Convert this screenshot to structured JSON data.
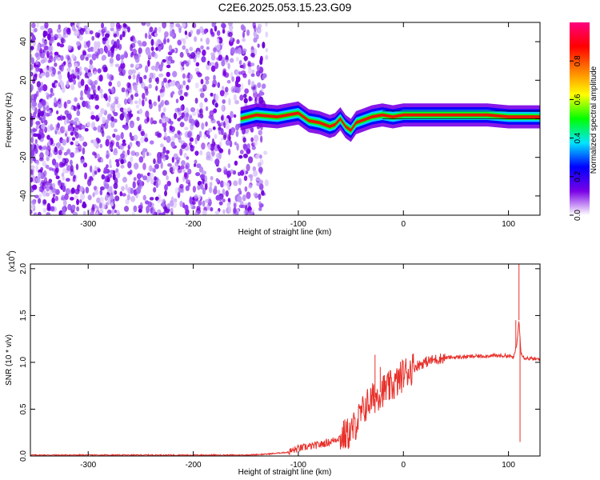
{
  "title": "C2E6.2025.053.15.23.G09",
  "chart_data": [
    {
      "type": "heatmap",
      "xlabel": "Height of straight line (km)",
      "ylabel": "Frequency (Hz)",
      "xlim": [
        -355,
        130
      ],
      "ylim": [
        -50,
        50
      ],
      "xticks": [
        -300,
        -200,
        -100,
        0,
        100
      ],
      "yticks": [
        -40,
        -20,
        0,
        20,
        40
      ],
      "ridge_x": [
        -155,
        -140,
        -120,
        -100,
        -90,
        -80,
        -70,
        -65,
        -60,
        -55,
        -50,
        -45,
        -40,
        -30,
        -20,
        -10,
        0,
        20,
        40,
        60,
        80,
        100,
        110,
        130
      ],
      "ridge_y": [
        0,
        2,
        1,
        3,
        -1,
        -2,
        -4,
        -3,
        0,
        -4,
        -6,
        -2,
        -1,
        1,
        2,
        1,
        2,
        2,
        2,
        2,
        2,
        1,
        1,
        1
      ],
      "colorbar": {
        "label": "Normalized spectral amplitude",
        "range": [
          0,
          1
        ],
        "ticks": [
          "0.0",
          "0.2",
          "0.4",
          "0.6",
          "0.8"
        ],
        "colors": [
          "#ffffff",
          "#7a00e6",
          "#0000ff",
          "#00e5ff",
          "#00ff00",
          "#ffff00",
          "#ff8000",
          "#ff0000",
          "#ff0080"
        ]
      }
    },
    {
      "type": "line",
      "xlabel": "Height of straight line (km)",
      "ylabel": "SNR (10 * v/v)",
      "y_multiplier": "(x10",
      "y_multiplier_exp": "4",
      "y_multiplier_close": ")",
      "xlim": [
        -355,
        130
      ],
      "ylim": [
        0,
        2.05
      ],
      "xticks": [
        -300,
        -200,
        -100,
        0,
        100
      ],
      "yticks": [
        "0.0",
        "0.5",
        "1.0",
        "1.5",
        "2.0"
      ],
      "color": "#e8302a",
      "series": [
        {
          "x": [
            -355,
            -300,
            -250,
            -200,
            -150,
            -130,
            -110,
            -100,
            -90,
            -80,
            -70,
            -60,
            -50,
            -45,
            -40,
            -35,
            -30,
            -25,
            -20,
            -15,
            -10,
            -5,
            0,
            10,
            20,
            30,
            40,
            60,
            80,
            100,
            105,
            108,
            110,
            112,
            115,
            120,
            130
          ],
          "y": [
            0.01,
            0.01,
            0.01,
            0.01,
            0.01,
            0.02,
            0.04,
            0.08,
            0.1,
            0.12,
            0.15,
            0.2,
            0.25,
            0.35,
            0.45,
            0.55,
            0.6,
            0.65,
            0.7,
            0.72,
            0.75,
            0.8,
            0.88,
            0.95,
            1.0,
            1.03,
            1.05,
            1.06,
            1.07,
            1.07,
            1.05,
            1.2,
            1.45,
            1.1,
            1.05,
            1.04,
            1.03
          ]
        }
      ],
      "spikes": [
        {
          "x": -27,
          "y": 1.08
        },
        {
          "x": -22,
          "y": 0.95
        },
        {
          "x": 110,
          "y": 2.05
        },
        {
          "x": 111,
          "y": 0.15
        },
        {
          "x": 107,
          "y": 1.45
        }
      ]
    }
  ]
}
